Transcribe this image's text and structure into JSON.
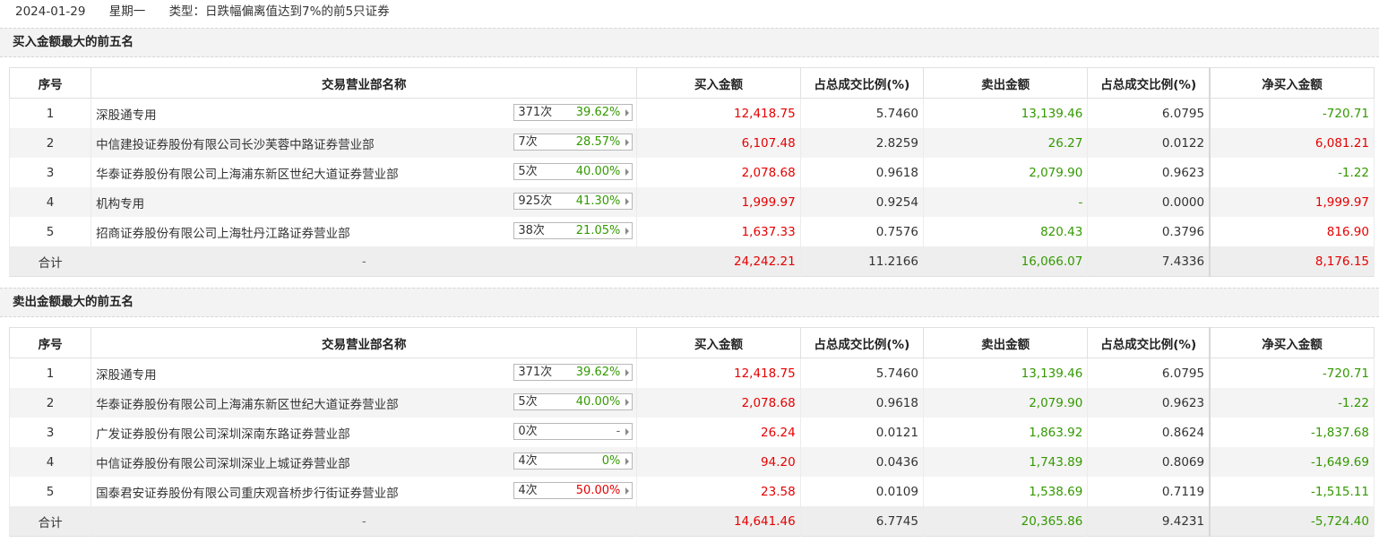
{
  "header": {
    "date": "2024-01-29",
    "weekday": "星期一",
    "type_text": "类型：日跌幅偏离值达到7%的前5只证券"
  },
  "columns": [
    "序号",
    "交易营业部名称",
    "买入金额",
    "占总成交比例(%)",
    "卖出金额",
    "占总成交比例(%)",
    "净买入金额"
  ],
  "colors": {
    "up": "#e60000",
    "down": "#339900"
  },
  "sections": [
    {
      "title": "买入金额最大的前五名",
      "rows": [
        {
          "idx": "1",
          "name": "深股通专用",
          "count": "371次",
          "pct": "39.62%",
          "pct_color": "green",
          "buy": "12,418.75",
          "buy_ratio": "5.7460",
          "sell": "13,139.46",
          "sell_ratio": "6.0795",
          "net": "-720.71",
          "net_color": "green"
        },
        {
          "idx": "2",
          "name": "中信建投证券股份有限公司长沙芙蓉中路证券营业部",
          "count": "7次",
          "pct": "28.57%",
          "pct_color": "green",
          "buy": "6,107.48",
          "buy_ratio": "2.8259",
          "sell": "26.27",
          "sell_ratio": "0.0122",
          "net": "6,081.21",
          "net_color": "red"
        },
        {
          "idx": "3",
          "name": "华泰证券股份有限公司上海浦东新区世纪大道证券营业部",
          "count": "5次",
          "pct": "40.00%",
          "pct_color": "green",
          "buy": "2,078.68",
          "buy_ratio": "0.9618",
          "sell": "2,079.90",
          "sell_ratio": "0.9623",
          "net": "-1.22",
          "net_color": "green"
        },
        {
          "idx": "4",
          "name": "机构专用",
          "count": "925次",
          "pct": "41.30%",
          "pct_color": "green",
          "buy": "1,999.97",
          "buy_ratio": "0.9254",
          "sell": "-",
          "sell_ratio": "0.0000",
          "net": "1,999.97",
          "net_color": "red"
        },
        {
          "idx": "5",
          "name": "招商证券股份有限公司上海牡丹江路证券营业部",
          "count": "38次",
          "pct": "21.05%",
          "pct_color": "green",
          "buy": "1,637.33",
          "buy_ratio": "0.7576",
          "sell": "820.43",
          "sell_ratio": "0.3796",
          "net": "816.90",
          "net_color": "red"
        }
      ],
      "total": {
        "label": "合计",
        "name": "-",
        "buy": "24,242.21",
        "buy_ratio": "11.2166",
        "sell": "16,066.07",
        "sell_ratio": "7.4336",
        "net": "8,176.15",
        "net_color": "red"
      }
    },
    {
      "title": "卖出金额最大的前五名",
      "rows": [
        {
          "idx": "1",
          "name": "深股通专用",
          "count": "371次",
          "pct": "39.62%",
          "pct_color": "green",
          "buy": "12,418.75",
          "buy_ratio": "5.7460",
          "sell": "13,139.46",
          "sell_ratio": "6.0795",
          "net": "-720.71",
          "net_color": "green"
        },
        {
          "idx": "2",
          "name": "华泰证券股份有限公司上海浦东新区世纪大道证券营业部",
          "count": "5次",
          "pct": "40.00%",
          "pct_color": "green",
          "buy": "2,078.68",
          "buy_ratio": "0.9618",
          "sell": "2,079.90",
          "sell_ratio": "0.9623",
          "net": "-1.22",
          "net_color": "green"
        },
        {
          "idx": "3",
          "name": "广发证券股份有限公司深圳深南东路证券营业部",
          "count": "0次",
          "pct": "-",
          "pct_color": "gray",
          "buy": "26.24",
          "buy_ratio": "0.0121",
          "sell": "1,863.92",
          "sell_ratio": "0.8624",
          "net": "-1,837.68",
          "net_color": "green"
        },
        {
          "idx": "4",
          "name": "中信证券股份有限公司深圳深业上城证券营业部",
          "count": "4次",
          "pct": "0%",
          "pct_color": "green",
          "buy": "94.20",
          "buy_ratio": "0.0436",
          "sell": "1,743.89",
          "sell_ratio": "0.8069",
          "net": "-1,649.69",
          "net_color": "green"
        },
        {
          "idx": "5",
          "name": "国泰君安证券股份有限公司重庆观音桥步行街证券营业部",
          "count": "4次",
          "pct": "50.00%",
          "pct_color": "red",
          "buy": "23.58",
          "buy_ratio": "0.0109",
          "sell": "1,538.69",
          "sell_ratio": "0.7119",
          "net": "-1,515.11",
          "net_color": "green"
        }
      ],
      "total": {
        "label": "合计",
        "name": "-",
        "buy": "14,641.46",
        "buy_ratio": "6.7745",
        "sell": "20,365.86",
        "sell_ratio": "9.4231",
        "net": "-5,724.40",
        "net_color": "green"
      }
    }
  ]
}
